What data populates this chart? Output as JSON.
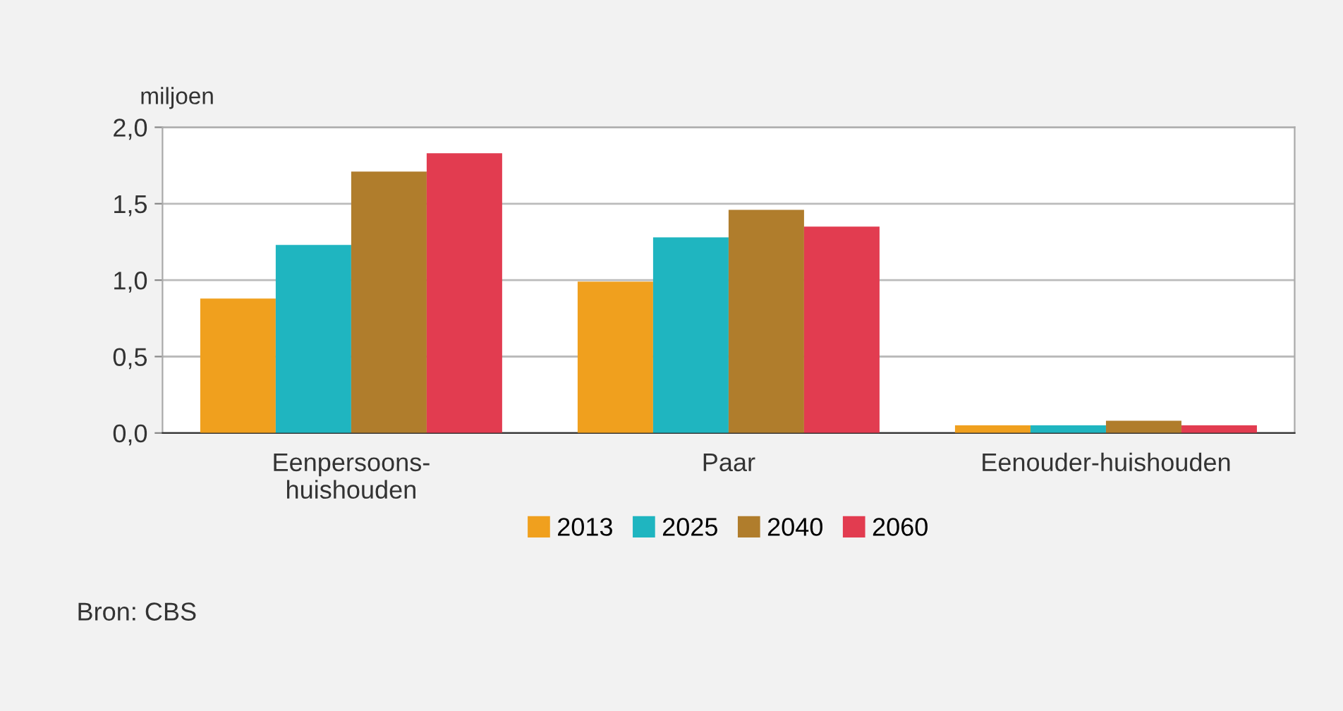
{
  "chart_data": {
    "type": "bar",
    "ylabel": "miljoen",
    "categories": [
      "Eenpersoons-\nhuishouden",
      "Paar",
      "Eenouder-huishouden"
    ],
    "series": [
      {
        "name": "2013",
        "color": "#f0a01e",
        "values": [
          0.88,
          0.99,
          0.05
        ]
      },
      {
        "name": "2025",
        "color": "#1fb5c0",
        "values": [
          1.23,
          1.28,
          0.05
        ]
      },
      {
        "name": "2040",
        "color": "#b07d2c",
        "values": [
          1.71,
          1.46,
          0.08
        ]
      },
      {
        "name": "2060",
        "color": "#e23c50",
        "values": [
          1.83,
          1.35,
          0.05
        ]
      }
    ],
    "ylim": [
      0,
      2
    ],
    "yticks": [
      {
        "value": 0,
        "label": "0,0"
      },
      {
        "value": 0.5,
        "label": "0,5"
      },
      {
        "value": 1,
        "label": "1,0"
      },
      {
        "value": 1.5,
        "label": "1,5"
      },
      {
        "value": 2,
        "label": "2,0"
      }
    ],
    "grid": "y",
    "legend": "bottom",
    "annotations": [
      "Bron: CBS"
    ]
  }
}
